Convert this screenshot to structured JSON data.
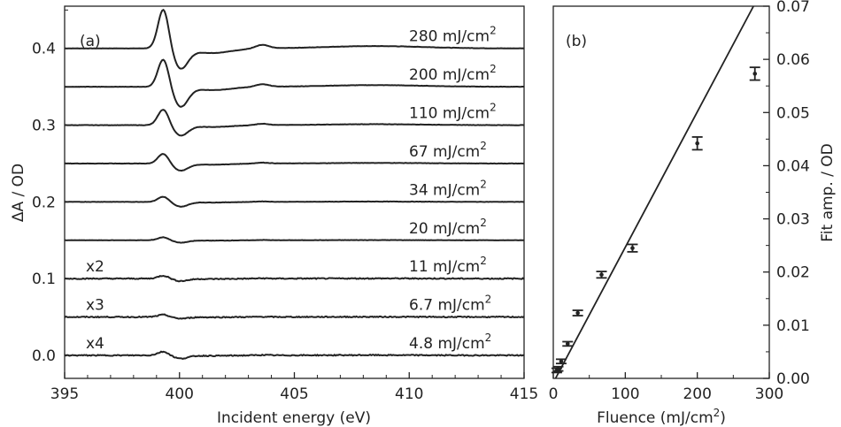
{
  "chart_data": [
    {
      "type": "line",
      "panel_label": "(a)",
      "xlabel": "Incident energy (eV)",
      "ylabel": "ΔA / OD",
      "xlim": [
        395,
        415
      ],
      "ylim": [
        -0.03,
        0.455
      ],
      "x_ticks": [
        395,
        400,
        405,
        410,
        415
      ],
      "y_ticks": [
        0.0,
        0.1,
        0.2,
        0.3,
        0.4
      ],
      "x_tick_labels": [
        "395",
        "400",
        "405",
        "410",
        "415"
      ],
      "y_tick_labels": [
        "0.0",
        "0.1",
        "0.2",
        "0.3",
        "0.4"
      ],
      "grid": false,
      "series": [
        {
          "name": "280 mJ/cm",
          "sup": "2",
          "offset": 0.4,
          "multiplier": "",
          "peak_amp": 0.052,
          "min_amp": -0.025
        },
        {
          "name": "200 mJ/cm",
          "sup": "2",
          "offset": 0.35,
          "multiplier": "",
          "peak_amp": 0.037,
          "min_amp": -0.025
        },
        {
          "name": "110 mJ/cm",
          "sup": "2",
          "offset": 0.3,
          "multiplier": "",
          "peak_amp": 0.021,
          "min_amp": -0.013
        },
        {
          "name": "67 mJ/cm",
          "sup": "2",
          "offset": 0.25,
          "multiplier": "",
          "peak_amp": 0.013,
          "min_amp": -0.009
        },
        {
          "name": "34 mJ/cm",
          "sup": "2",
          "offset": 0.2,
          "multiplier": "",
          "peak_amp": 0.007,
          "min_amp": -0.006
        },
        {
          "name": "20 mJ/cm",
          "sup": "2",
          "offset": 0.15,
          "multiplier": "",
          "peak_amp": 0.004,
          "min_amp": -0.003
        },
        {
          "name": "11 mJ/cm",
          "sup": "2",
          "offset": 0.1,
          "multiplier": "x2",
          "peak_amp": 0.004,
          "min_amp": -0.003
        },
        {
          "name": "6.7 mJ/cm",
          "sup": "2",
          "offset": 0.05,
          "multiplier": "x3",
          "peak_amp": 0.003,
          "min_amp": -0.002
        },
        {
          "name": "4.8 mJ/cm",
          "sup": "2",
          "offset": 0.0,
          "multiplier": "x4",
          "peak_amp": 0.005,
          "min_amp": -0.004
        }
      ]
    },
    {
      "type": "scatter",
      "panel_label": "(b)",
      "xlabel": "Fluence (mJ/cm",
      "xlabel_sup": "2",
      "xlabel_end": ")",
      "ylabel": "Fit amp. / OD",
      "xlim": [
        0,
        300
      ],
      "ylim": [
        0,
        0.07
      ],
      "x_ticks": [
        0,
        100,
        200,
        300
      ],
      "y_ticks": [
        0.0,
        0.01,
        0.02,
        0.03,
        0.04,
        0.05,
        0.06,
        0.07
      ],
      "x_tick_labels": [
        "0",
        "100",
        "200",
        "300"
      ],
      "y_tick_labels": [
        "0.00",
        "0.01",
        "0.02",
        "0.03",
        "0.04",
        "0.05",
        "0.06",
        "0.07"
      ],
      "grid": false,
      "points": [
        {
          "x": 4.8,
          "y": 0.0015,
          "err": 0.0004
        },
        {
          "x": 6.7,
          "y": 0.0018,
          "err": 0.0004
        },
        {
          "x": 11,
          "y": 0.0032,
          "err": 0.0004
        },
        {
          "x": 20,
          "y": 0.0065,
          "err": 0.0004
        },
        {
          "x": 34,
          "y": 0.0123,
          "err": 0.0005
        },
        {
          "x": 67,
          "y": 0.0195,
          "err": 0.0006
        },
        {
          "x": 110,
          "y": 0.0245,
          "err": 0.0007
        },
        {
          "x": 200,
          "y": 0.0442,
          "err": 0.0012
        },
        {
          "x": 280,
          "y": 0.0573,
          "err": 0.0012
        }
      ],
      "fit_line": {
        "x": [
          0,
          280
        ],
        "y": [
          -0.0008,
          0.0705
        ]
      }
    }
  ]
}
